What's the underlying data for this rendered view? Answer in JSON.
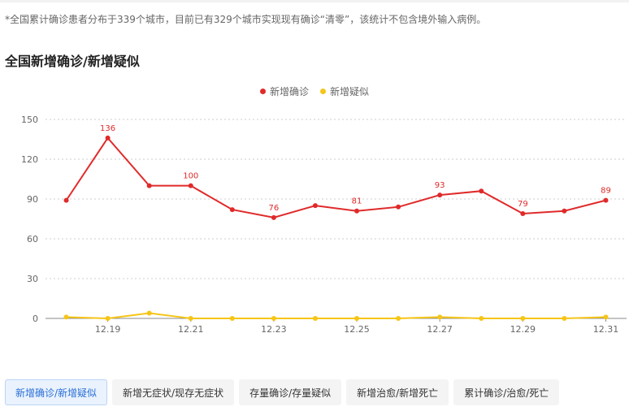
{
  "note": "*全国累计确诊患者分布于339个城市，目前已有329个城市实现现有确诊“清零”，该统计不包含境外输入病例。",
  "title": "全国新增确诊/新增疑似",
  "tabs": [
    {
      "label": "新增确诊/新增疑似",
      "active": true
    },
    {
      "label": "新增无症状/现存无症状",
      "active": false
    },
    {
      "label": "存量确诊/存量疑似",
      "active": false
    },
    {
      "label": "新增治愈/新增死亡",
      "active": false
    },
    {
      "label": "累计确诊/治愈/死亡",
      "active": false
    }
  ],
  "colors": {
    "confirmed": "#e02a2a",
    "suspected": "#f5c518",
    "grid": "#cccccc",
    "axis": "#888888"
  },
  "chart_data": {
    "type": "line",
    "x": [
      "12.18",
      "12.19",
      "12.20",
      "12.21",
      "12.22",
      "12.23",
      "12.24",
      "12.25",
      "12.26",
      "12.27",
      "12.28",
      "12.29",
      "12.30",
      "12.31"
    ],
    "xtick_labels": [
      "12.19",
      "12.21",
      "12.23",
      "12.25",
      "12.27",
      "12.29",
      "12.31"
    ],
    "series": [
      {
        "name": "新增确诊",
        "values": [
          89,
          136,
          100,
          100,
          82,
          76,
          85,
          81,
          84,
          93,
          96,
          79,
          81,
          89
        ],
        "labels": [
          "",
          "136",
          "",
          "100",
          "",
          "76",
          "",
          "81",
          "",
          "93",
          "",
          "79",
          "",
          "89"
        ]
      },
      {
        "name": "新增疑似",
        "values": [
          1,
          0,
          4,
          0,
          0,
          0,
          0,
          0,
          0,
          1,
          0,
          0,
          0,
          1
        ]
      }
    ],
    "ylim": [
      0,
      150
    ],
    "yticks": [
      "0",
      "30",
      "60",
      "90",
      "120",
      "150"
    ],
    "grid": true,
    "legend_position": "top-center"
  }
}
